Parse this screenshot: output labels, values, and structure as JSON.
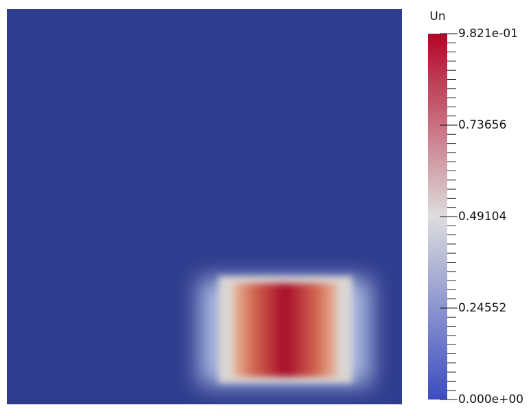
{
  "chart_data": {
    "type": "heatmap",
    "colorbar_title": "Un",
    "clim": [
      0,
      0.9821
    ],
    "cticks": [
      {
        "value": 0,
        "label": "0.000e+00"
      },
      0.24552,
      0.49104,
      0.73656,
      {
        "value": 0.9821,
        "label": "9.821e-01"
      }
    ],
    "colormap": [
      "#3b4cc0",
      "#dddddd",
      "#b40426"
    ],
    "background": "#303d8f"
  }
}
